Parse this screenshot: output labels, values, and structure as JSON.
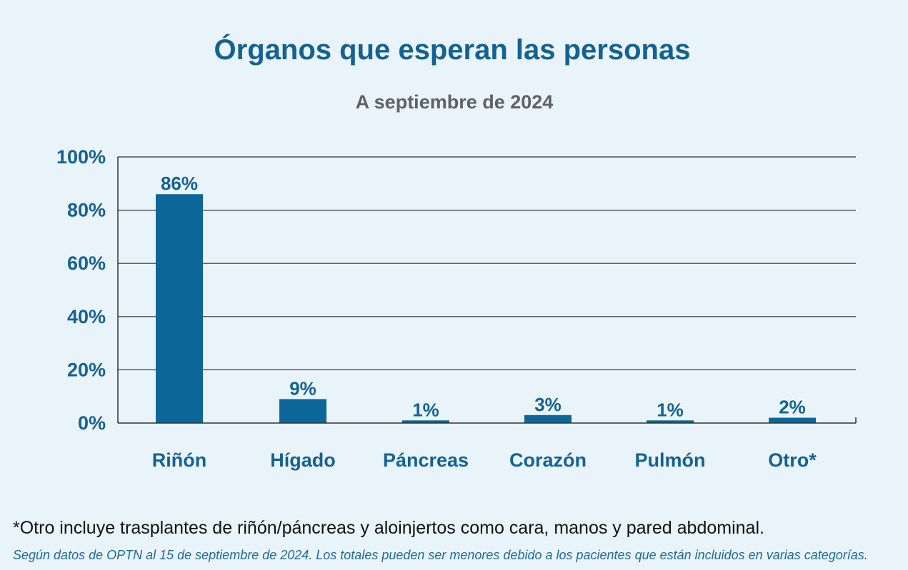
{
  "chart_data": {
    "type": "bar",
    "title": "Órganos que esperan las personas",
    "subtitle": "A septiembre de 2024",
    "categories": [
      "Riñón",
      "Hígado",
      "Páncreas",
      "Corazón",
      "Pulmón",
      "Otro*"
    ],
    "values": [
      86,
      9,
      1,
      3,
      1,
      2
    ],
    "value_labels": [
      "86%",
      "9%",
      "1%",
      "3%",
      "1%",
      "2%"
    ],
    "ylim": [
      0,
      100
    ],
    "yticks": [
      0,
      20,
      40,
      60,
      80,
      100
    ],
    "ytick_labels": [
      "0%",
      "20%",
      "40%",
      "60%",
      "80%",
      "100%"
    ],
    "grid": true,
    "legend": "none",
    "bar_color": "#0d6699"
  },
  "footnote": "*Otro incluye trasplantes de riñón/páncreas y aloinjertos como cara, manos y pared abdominal.",
  "source": "Según datos de OPTN al 15 de septiembre de 2024. Los totales pueden ser menores debido a los pacientes que están incluidos en varias categorías."
}
